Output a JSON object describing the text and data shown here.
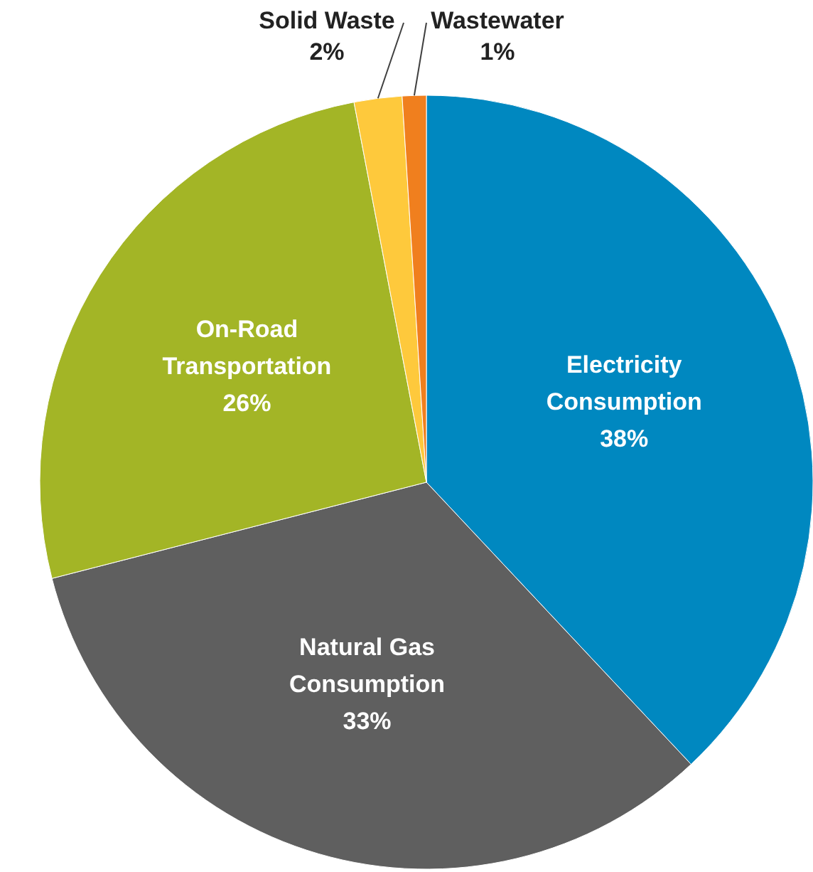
{
  "chart_data": {
    "type": "pie",
    "categories": [
      "Electricity Consumption",
      "Natural Gas Consumption",
      "On-Road Transportation",
      "Solid Waste",
      "Wastewater"
    ],
    "values": [
      38,
      33,
      26,
      2,
      1
    ],
    "value_labels": [
      "38%",
      "33%",
      "26%",
      "2%",
      "1%"
    ],
    "colors": [
      "#0088c0",
      "#5f5f5f",
      "#a3b526",
      "#fec93c",
      "#f07f1e"
    ]
  }
}
